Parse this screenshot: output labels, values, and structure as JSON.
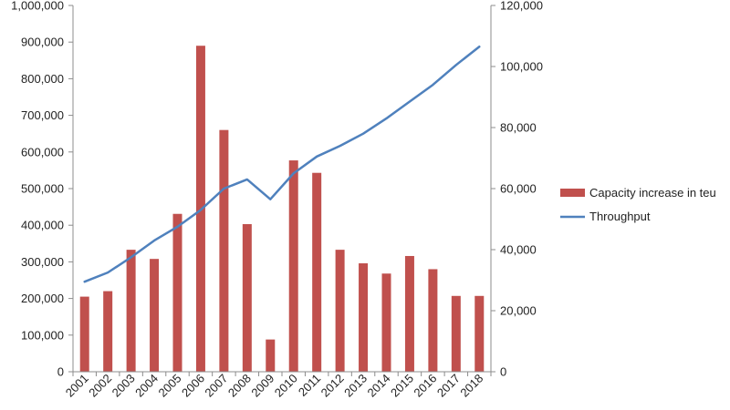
{
  "chart_data": {
    "type": "bar",
    "categories": [
      "2001",
      "2002",
      "2003",
      "2004",
      "2005",
      "2006",
      "2007",
      "2008",
      "2009",
      "2010",
      "2011",
      "2012",
      "2013",
      "2014",
      "2015",
      "2016",
      "2017",
      "2018"
    ],
    "series": [
      {
        "name": "Capacity increase in teu",
        "type": "bar",
        "axis": "left",
        "color": "#C0504D",
        "values": [
          205000,
          220000,
          333000,
          308000,
          431000,
          890000,
          660000,
          403000,
          88000,
          577000,
          543000,
          333000,
          296000,
          268000,
          316000,
          280000,
          207000,
          207000
        ]
      },
      {
        "name": "Throughput",
        "type": "line",
        "axis": "right",
        "color": "#4F81BD",
        "values": [
          29500,
          32500,
          37500,
          43000,
          47500,
          53000,
          60000,
          63000,
          56500,
          65000,
          70500,
          74000,
          78000,
          83000,
          88500,
          94000,
          100500,
          106500
        ]
      }
    ],
    "left_axis": {
      "ylim": [
        0,
        1000000
      ],
      "ticks": [
        0,
        100000,
        200000,
        300000,
        400000,
        500000,
        600000,
        700000,
        800000,
        900000,
        1000000
      ],
      "tick_labels": [
        "0",
        "100,000",
        "200,000",
        "300,000",
        "400,000",
        "500,000",
        "600,000",
        "700,000",
        "800,000",
        "900,000",
        "1,000,000"
      ]
    },
    "right_axis": {
      "ylim": [
        0,
        120000
      ],
      "ticks": [
        0,
        20000,
        40000,
        60000,
        80000,
        100000,
        120000
      ],
      "tick_labels": [
        "0",
        "20,000",
        "40,000",
        "60,000",
        "80,000",
        "100,000",
        "120,000"
      ]
    },
    "title": "",
    "xlabel": "",
    "ylabel": "",
    "grid": false,
    "legend_position": "right"
  }
}
